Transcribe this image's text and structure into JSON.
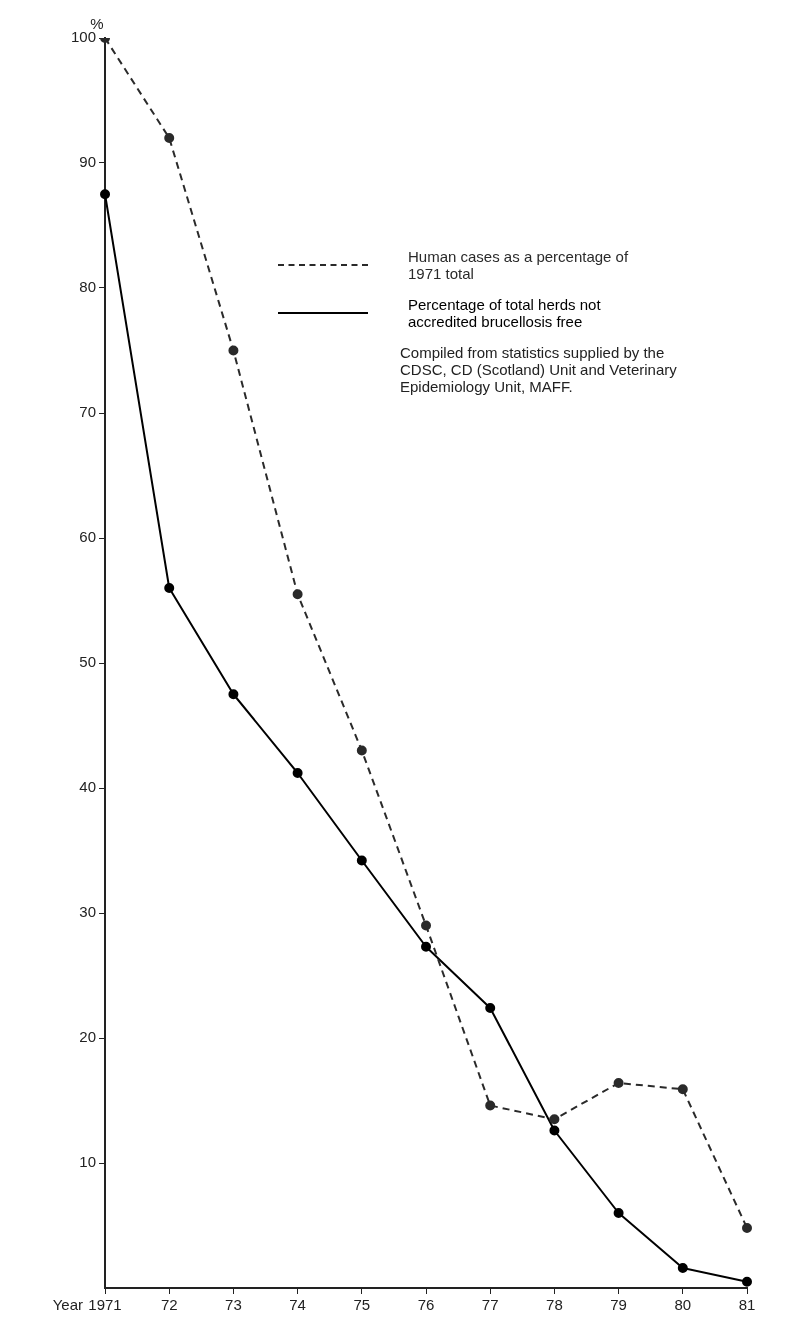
{
  "chart_data": {
    "type": "line",
    "xlabel": "Year",
    "ylabel": "%",
    "categories": [
      "1971",
      "72",
      "73",
      "74",
      "75",
      "76",
      "77",
      "78",
      "79",
      "80",
      "81"
    ],
    "series": [
      {
        "name": "Human cases as a percentage of 1971 total",
        "color": "#2a2a2a",
        "line_style": "dashed",
        "values": [
          100,
          92,
          75,
          55.5,
          43,
          29,
          14.6,
          13.5,
          16.4,
          15.9,
          4.8
        ]
      },
      {
        "name": "Percentage of total herds not accredited brucellosis free",
        "color": "#000000",
        "line_style": "solid",
        "values": [
          87.5,
          56,
          47.5,
          41.2,
          34.2,
          27.3,
          22.4,
          12.6,
          6,
          1.6,
          0.5
        ]
      }
    ],
    "ylim": [
      0,
      100
    ],
    "yticks": [
      10,
      20,
      30,
      40,
      50,
      60,
      70,
      80,
      90,
      100
    ],
    "grid": false,
    "marker": "circle",
    "legend": "top right",
    "annotations": [
      "Compiled from statistics supplied by the CDSC, CD (Scotland) Unit and Veterinary Epidemiology Unit, MAFF."
    ]
  }
}
